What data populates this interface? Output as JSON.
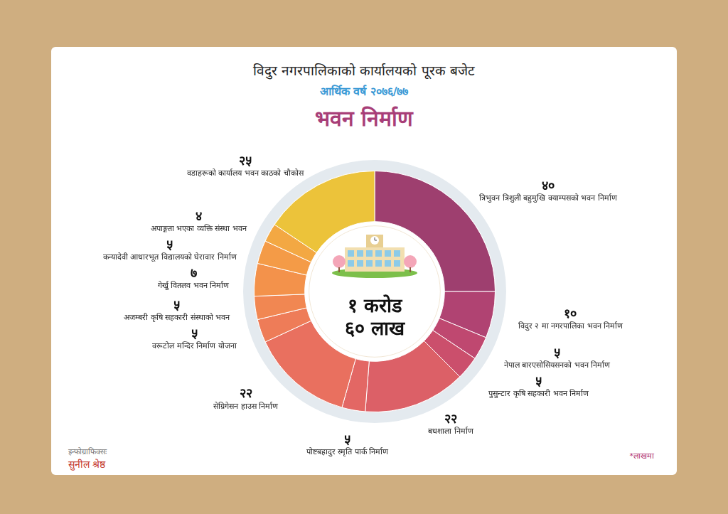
{
  "header": {
    "title": "विदुर नगरपालिकाको कार्यालयको पूरक बजेट",
    "subtitle": "आर्थिक वर्ष २०७६/७७",
    "heading": "भवन निर्माण"
  },
  "chart_data": {
    "type": "doughnut",
    "categories": [
      "त्रिभुवन त्रिशुली बहुमुखि क्याम्पसको भवन निर्माण",
      "विदुर २ मा नगरपालिका भवन निर्माण",
      "नेपाल बारएसोसियसनको भवन निर्माण",
      "पुसुन्टार कृषि सहकारी भवन निर्माण",
      "बधशाला निर्माण",
      "पोष्टबहादुर स्मृति पार्क निर्माण",
      "सेग्रिगेसन हाउस निर्माण",
      "वरूटोल मन्दिर निर्माण योजना",
      "अजम्बरी कृषि सहकारी संस्थाको भवन",
      "गेर्खु वितलव भवन निर्माण",
      "कन्यादेवी आधारभूत विद्यालयको घेरावार निर्माण",
      "अपाङ्गता भएका व्यक्ति संस्था भवन",
      "वडाहरूको कार्यालय भवन काठको चौकोस"
    ],
    "values": [
      40,
      10,
      5,
      5,
      22,
      5,
      22,
      5,
      5,
      7,
      5,
      4,
      25
    ],
    "value_labels": [
      "४०",
      "१०",
      "५",
      "५",
      "२२",
      "५",
      "२२",
      "५",
      "५",
      "७",
      "५",
      "४",
      "२५"
    ],
    "colors": [
      "#9e3f6f",
      "#b04372",
      "#bf4870",
      "#cb4f6c",
      "#dc6067",
      "#e36764",
      "#e9705f",
      "#ee7c58",
      "#f18752",
      "#f3924b",
      "#f49b47",
      "#f3a843",
      "#ecc33a"
    ],
    "data_labels": true,
    "center_text": [
      "१ करोड",
      "६० लाख"
    ],
    "note": "*लाखमा"
  },
  "credit": {
    "label": "इन्फोग्राफिक्सः",
    "name": "सुनील श्रेष्ठ"
  }
}
